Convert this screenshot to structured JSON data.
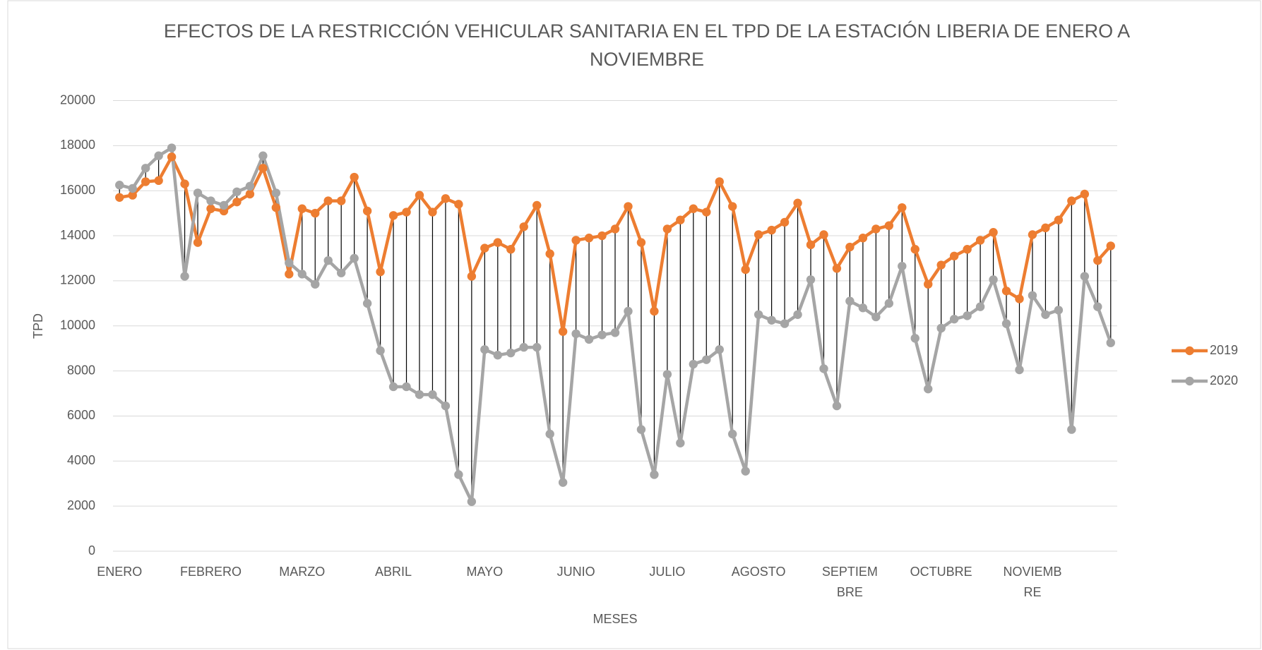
{
  "chart_data": {
    "type": "line",
    "title": "EFECTOS DE LA RESTRICCIÓN VEHICULAR SANITARIA EN EL TPD DE LA ESTACIÓN LIBERIA DE ENERO A NOVIEMBRE",
    "x_label": "MESES",
    "y_label": "TPD",
    "categories": [
      "ENERO",
      null,
      null,
      null,
      null,
      null,
      null,
      "FEBRERO",
      null,
      null,
      null,
      null,
      null,
      null,
      "MARZO",
      null,
      null,
      null,
      null,
      null,
      null,
      "ABRIL",
      null,
      null,
      null,
      null,
      null,
      null,
      "MAYO",
      null,
      null,
      null,
      null,
      null,
      null,
      "JUNIO",
      null,
      null,
      null,
      null,
      null,
      null,
      "JULIO",
      null,
      null,
      null,
      null,
      null,
      null,
      "AGOSTO",
      null,
      null,
      null,
      null,
      null,
      null,
      "SEPTIEMBRE",
      null,
      null,
      null,
      null,
      null,
      null,
      "OCTUBRE",
      null,
      null,
      null,
      null,
      null,
      null,
      "NOVIEMBRE",
      null,
      null,
      null,
      null,
      null,
      null
    ],
    "series": [
      {
        "name": "2019",
        "color": "#ed7d31",
        "values": [
          15700,
          15800,
          16400,
          16450,
          17500,
          16300,
          13700,
          15200,
          15100,
          15500,
          15850,
          17000,
          15250,
          12300,
          15200,
          15000,
          15550,
          15550,
          16600,
          15100,
          12400,
          14900,
          15050,
          15800,
          15050,
          15650,
          15400,
          12200,
          13450,
          13700,
          13400,
          14400,
          15350,
          13200,
          9750,
          13800,
          13900,
          14000,
          14300,
          15300,
          13700,
          10650,
          14300,
          14700,
          15200,
          15050,
          16400,
          15300,
          12500,
          14050,
          14250,
          14600,
          15450,
          13600,
          14050,
          12550,
          13500,
          13900,
          14300,
          14450,
          15250,
          13400,
          11850,
          12700,
          13100,
          13400,
          13800,
          14150,
          11550,
          11200,
          14050,
          14350,
          14700,
          15550,
          15850,
          12900,
          13550
        ]
      },
      {
        "name": "2020",
        "color": "#a5a5a5",
        "values": [
          16250,
          16100,
          17000,
          17550,
          17900,
          12200,
          15900,
          15550,
          15350,
          15950,
          16200,
          17550,
          15900,
          12800,
          12300,
          11850,
          12900,
          12350,
          13000,
          11000,
          8900,
          7300,
          7300,
          6950,
          6950,
          6450,
          3400,
          2200,
          8950,
          8700,
          8800,
          9050,
          9050,
          5200,
          3050,
          9650,
          9400,
          9600,
          9700,
          10650,
          5400,
          3400,
          7850,
          4800,
          8300,
          8500,
          8950,
          5200,
          3550,
          10500,
          10250,
          10100,
          10500,
          12050,
          8100,
          6450,
          11100,
          10800,
          10400,
          11000,
          12650,
          9450,
          7200,
          9900,
          10300,
          10450,
          10850,
          12050,
          10100,
          8050,
          11350,
          10500,
          10700,
          5400,
          12200,
          10850,
          9250
        ]
      }
    ],
    "ylim": [
      0,
      20000
    ],
    "yticks": [
      0,
      2000,
      4000,
      6000,
      8000,
      10000,
      12000,
      14000,
      16000,
      18000,
      20000
    ],
    "grid": true,
    "high_low_lines": true,
    "legend": "right"
  }
}
